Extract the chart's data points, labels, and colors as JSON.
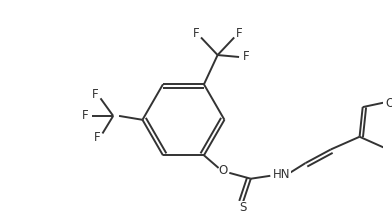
{
  "bg_color": "#ffffff",
  "line_color": "#333333",
  "line_width": 1.4,
  "font_size": 8.5,
  "figsize": [
    3.92,
    2.24
  ],
  "dpi": 100,
  "xlim": [
    0,
    392
  ],
  "ylim": [
    0,
    224
  ]
}
